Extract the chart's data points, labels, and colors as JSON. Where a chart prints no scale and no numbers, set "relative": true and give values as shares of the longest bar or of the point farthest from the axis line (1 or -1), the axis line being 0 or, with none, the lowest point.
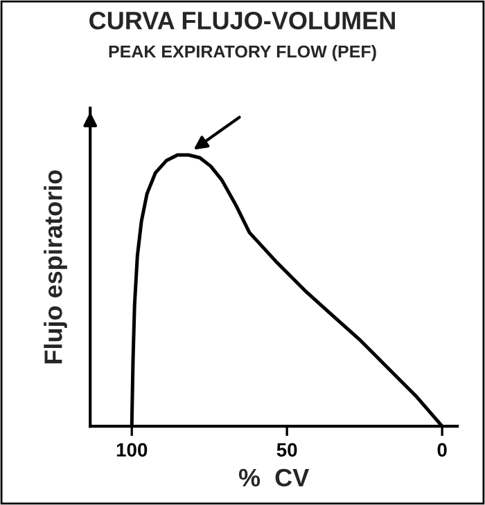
{
  "chart_data": {
    "type": "line",
    "title": "CURVA FLUJO-VOLUMEN",
    "subtitle": "PEAK EXPIRATORY FLOW (PEF)",
    "xlabel": "%  CV",
    "ylabel": "Flujo espiratorio",
    "relative": true,
    "x": [
      100,
      99.6,
      99.1,
      98.2,
      96.9,
      95.1,
      92.4,
      88.8,
      85.3,
      81.7,
      78.1,
      74.6,
      71.0,
      66.5,
      62.1,
      53.1,
      44.2,
      35.3,
      26.3,
      17.4,
      8.5,
      0
    ],
    "series": [
      {
        "color": "#000000",
        "values": [
          0,
          0.245,
          0.449,
          0.628,
          0.755,
          0.857,
          0.934,
          0.98,
          1.0,
          1.0,
          0.99,
          0.959,
          0.908,
          0.816,
          0.714,
          0.602,
          0.5,
          0.408,
          0.316,
          0.214,
          0.112,
          0
        ]
      }
    ],
    "xlim": [
      113.4,
      -4.9
    ],
    "xticks": [
      100,
      50,
      0
    ],
    "grid": false,
    "legend": false,
    "marker": "none",
    "line_style": "solid"
  }
}
